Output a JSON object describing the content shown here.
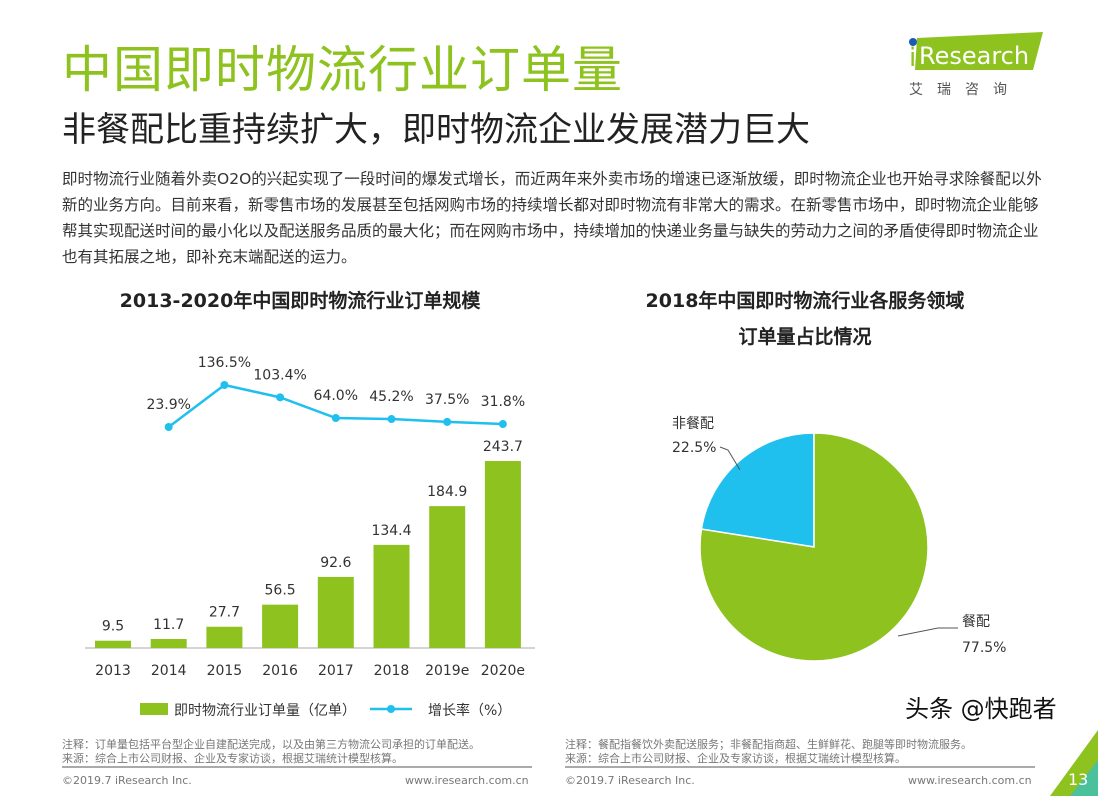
{
  "header": {
    "title": "中国即时物流行业订单量",
    "subtitle": "非餐配比重持续扩大，即时物流企业发展潜力巨大",
    "intro": "即时物流行业随着外卖O2O的兴起实现了一段时间的爆发式增长，而近两年来外卖市场的增速已逐渐放缓，即时物流企业也开始寻求除餐配以外新的业务方向。目前来看，新零售市场的发展甚至包括网购市场的持续增长都对即时物流有非常大的需求。在新零售市场中，即时物流企业能够帮其实现配送时间的最小化以及配送服务品质的最大化；而在网购市场中，持续增加的快递业务量与缺失的劳动力之间的矛盾使得即时物流企业也有其拓展之地，即补充末端配送的运力。"
  },
  "logo": {
    "brand": "iResearch",
    "cn": "艾 瑞 咨 询"
  },
  "colors": {
    "green": "#8dc21f",
    "cyan": "#1fbfee"
  },
  "chart_data": [
    {
      "type": "bar+line",
      "title": "2013-2020年中国即时物流行业订单规模",
      "categories": [
        "2013",
        "2014",
        "2015",
        "2016",
        "2017",
        "2018",
        "2019e",
        "2020e"
      ],
      "series": [
        {
          "name": "即时物流行业订单量（亿单）",
          "type": "bar",
          "values": [
            9.5,
            11.7,
            27.7,
            56.5,
            92.6,
            134.4,
            184.9,
            243.7
          ]
        },
        {
          "name": "增长率（%）",
          "type": "line",
          "values": [
            null,
            23.9,
            136.5,
            103.4,
            64.0,
            45.2,
            37.5,
            31.8
          ],
          "labels": [
            "",
            "23.9%",
            "136.5%",
            "103.4%",
            "64.0%",
            "45.2%",
            "37.5%",
            "31.8%"
          ]
        }
      ],
      "legend": "bottom"
    },
    {
      "type": "pie",
      "title": "2018年中国即时物流行业各服务领域",
      "title2": "订单量占比情况",
      "slices": [
        {
          "name": "非餐配",
          "value": 22.5,
          "label": "22.5%"
        },
        {
          "name": "餐配",
          "value": 77.5,
          "label": "77.5%"
        }
      ]
    }
  ],
  "notes": {
    "left1": "注释：订单量包括平台型企业自建配送完成，以及由第三方物流公司承担的订单配送。",
    "left2": "来源：综合上市公司财报、企业及专家访谈，根据艾瑞统计模型核算。",
    "right1": "注释：餐配指餐饮外卖配送服务；非餐配指商超、生鲜鲜花、跑腿等即时物流服务。",
    "right2": "来源：综合上市公司财报、企业及专家访谈，根据艾瑞统计模型核算。"
  },
  "footer": {
    "copyright": "©2019.7 iResearch Inc.",
    "url": "www.iresearch.com.cn",
    "page": "13",
    "watermark": "头条 @快跑者"
  }
}
